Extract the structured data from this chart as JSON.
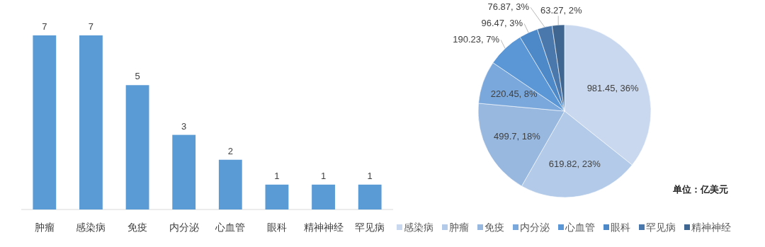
{
  "chart_data": [
    {
      "type": "bar",
      "categories": [
        "肿瘤",
        "感染病",
        "免疫",
        "内分泌",
        "心血管",
        "眼科",
        "精神神经",
        "罕见病"
      ],
      "values": [
        7,
        7,
        5,
        3,
        2,
        1,
        1,
        1
      ],
      "color": "#5b9bd5",
      "data_labels": true
    },
    {
      "type": "pie",
      "categories": [
        "感染病",
        "肿瘤",
        "免疫",
        "内分泌",
        "心血管",
        "眼科",
        "罕见病",
        "精神神经"
      ],
      "values": [
        981.45,
        619.82,
        499.7,
        220.45,
        190.23,
        96.47,
        76.87,
        63.27
      ],
      "colors": [
        "#c9d8ee",
        "#b3cbe8",
        "#98b8e0",
        "#7aa8dc",
        "#5b97d6",
        "#4d88c8",
        "#4a78ad",
        "#3f6690"
      ],
      "value_labels": [
        "981.45, 36%",
        "619.82, 23%",
        "499.7, 18%",
        "220.45, 8%",
        "190.23, 7%",
        "96.47, 3%",
        "76.87, 3%",
        "63.27, 2%"
      ],
      "legend": "bottom",
      "annotations": [
        "单位：亿美元"
      ]
    }
  ]
}
